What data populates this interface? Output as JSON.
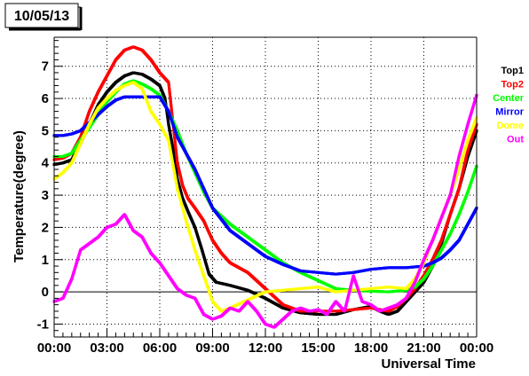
{
  "chart_data": {
    "type": "scatter",
    "title": "10/05/13",
    "xlabel": "Universal Time",
    "ylabel": "Temperature(degree)",
    "xlim": [
      0,
      24
    ],
    "ylim": [
      -1.4,
      7.9
    ],
    "grid": true,
    "legend_position": "right",
    "x_tick_values": [
      0,
      3,
      6,
      9,
      12,
      15,
      18,
      21,
      24
    ],
    "x_tick_labels": [
      "00:00",
      "03:00",
      "06:00",
      "09:00",
      "12:00",
      "15:00",
      "18:00",
      "21:00",
      "00:00"
    ],
    "y_tick_values": [
      -1,
      0,
      1,
      2,
      3,
      4,
      5,
      6,
      7
    ],
    "y_tick_labels": [
      "-1",
      "0",
      "1",
      "2",
      "3",
      "4",
      "5",
      "6",
      "7"
    ],
    "series": [
      {
        "name": "Top1",
        "color": "#000000",
        "points": [
          [
            0,
            3.95
          ],
          [
            0.5,
            4.0
          ],
          [
            1,
            4.1
          ],
          [
            1.5,
            4.6
          ],
          [
            2,
            5.2
          ],
          [
            2.5,
            5.8
          ],
          [
            3,
            6.2
          ],
          [
            3.5,
            6.5
          ],
          [
            4,
            6.7
          ],
          [
            4.5,
            6.8
          ],
          [
            5,
            6.75
          ],
          [
            5.5,
            6.6
          ],
          [
            6,
            6.4
          ],
          [
            6.3,
            6.0
          ],
          [
            6.5,
            5.2
          ],
          [
            6.8,
            4.3
          ],
          [
            7,
            3.5
          ],
          [
            7.3,
            2.9
          ],
          [
            7.6,
            2.5
          ],
          [
            8,
            2.0
          ],
          [
            8.4,
            1.3
          ],
          [
            8.8,
            0.55
          ],
          [
            9.2,
            0.3
          ],
          [
            10,
            0.2
          ],
          [
            11,
            0.05
          ],
          [
            12,
            -0.2
          ],
          [
            13,
            -0.5
          ],
          [
            14,
            -0.65
          ],
          [
            15,
            -0.7
          ],
          [
            16,
            -0.7
          ],
          [
            17,
            -0.55
          ],
          [
            18,
            -0.45
          ],
          [
            18.5,
            -0.6
          ],
          [
            19,
            -0.7
          ],
          [
            19.5,
            -0.6
          ],
          [
            20,
            -0.3
          ],
          [
            20.5,
            0.0
          ],
          [
            21,
            0.3
          ],
          [
            21.5,
            0.8
          ],
          [
            22,
            1.5
          ],
          [
            22.5,
            2.4
          ],
          [
            23,
            3.2
          ],
          [
            23.5,
            4.2
          ],
          [
            24,
            5.0
          ]
        ]
      },
      {
        "name": "Top2",
        "color": "#ff0000",
        "points": [
          [
            0,
            4.1
          ],
          [
            0.5,
            4.15
          ],
          [
            1,
            4.3
          ],
          [
            1.5,
            4.8
          ],
          [
            2,
            5.6
          ],
          [
            2.5,
            6.2
          ],
          [
            3,
            6.7
          ],
          [
            3.5,
            7.2
          ],
          [
            4,
            7.5
          ],
          [
            4.5,
            7.6
          ],
          [
            5,
            7.5
          ],
          [
            5.5,
            7.2
          ],
          [
            6,
            6.8
          ],
          [
            6.5,
            6.5
          ],
          [
            6.8,
            5.0
          ],
          [
            7,
            4.0
          ],
          [
            7.3,
            3.3
          ],
          [
            7.6,
            2.9
          ],
          [
            8,
            2.6
          ],
          [
            8.5,
            2.2
          ],
          [
            9,
            1.6
          ],
          [
            9.5,
            1.2
          ],
          [
            10,
            0.9
          ],
          [
            10.5,
            0.75
          ],
          [
            11,
            0.6
          ],
          [
            12,
            0.1
          ],
          [
            13,
            -0.4
          ],
          [
            14,
            -0.6
          ],
          [
            15,
            -0.6
          ],
          [
            16,
            -0.6
          ],
          [
            17,
            -0.55
          ],
          [
            18,
            -0.5
          ],
          [
            18.5,
            -0.55
          ],
          [
            19,
            -0.6
          ],
          [
            19.5,
            -0.45
          ],
          [
            20,
            -0.2
          ],
          [
            20.5,
            0.1
          ],
          [
            21,
            0.5
          ],
          [
            21.5,
            1.0
          ],
          [
            22,
            1.6
          ],
          [
            22.5,
            2.4
          ],
          [
            23,
            3.2
          ],
          [
            23.5,
            4.4
          ],
          [
            24,
            5.2
          ]
        ]
      },
      {
        "name": "Center",
        "color": "#00ff00",
        "points": [
          [
            0,
            4.2
          ],
          [
            0.5,
            4.2
          ],
          [
            1,
            4.3
          ],
          [
            1.5,
            4.7
          ],
          [
            2,
            5.1
          ],
          [
            2.5,
            5.5
          ],
          [
            3,
            5.9
          ],
          [
            3.5,
            6.2
          ],
          [
            4,
            6.45
          ],
          [
            4.5,
            6.55
          ],
          [
            5,
            6.45
          ],
          [
            5.5,
            6.3
          ],
          [
            6,
            6.1
          ],
          [
            6.5,
            5.6
          ],
          [
            7,
            5.0
          ],
          [
            7.5,
            4.3
          ],
          [
            8,
            3.7
          ],
          [
            8.5,
            3.1
          ],
          [
            9,
            2.6
          ],
          [
            10,
            2.1
          ],
          [
            11,
            1.7
          ],
          [
            12,
            1.3
          ],
          [
            13,
            0.9
          ],
          [
            14,
            0.6
          ],
          [
            15,
            0.35
          ],
          [
            16,
            0.1
          ],
          [
            17,
            0.05
          ],
          [
            18,
            0.02
          ],
          [
            19,
            0.0
          ],
          [
            20,
            0.05
          ],
          [
            20.5,
            0.15
          ],
          [
            21,
            0.4
          ],
          [
            21.5,
            0.8
          ],
          [
            22,
            1.3
          ],
          [
            22.5,
            1.8
          ],
          [
            23,
            2.4
          ],
          [
            23.5,
            3.1
          ],
          [
            24,
            3.9
          ]
        ]
      },
      {
        "name": "Mirror",
        "color": "#0000ff",
        "points": [
          [
            0,
            4.85
          ],
          [
            0.5,
            4.85
          ],
          [
            1,
            4.9
          ],
          [
            1.5,
            5.0
          ],
          [
            2,
            5.25
          ],
          [
            2.5,
            5.5
          ],
          [
            3,
            5.75
          ],
          [
            3.5,
            5.95
          ],
          [
            4,
            6.05
          ],
          [
            4.5,
            6.05
          ],
          [
            5,
            6.05
          ],
          [
            5.5,
            6.05
          ],
          [
            6,
            6.05
          ],
          [
            6.5,
            5.6
          ],
          [
            7,
            4.8
          ],
          [
            7.5,
            4.3
          ],
          [
            8,
            3.8
          ],
          [
            8.5,
            3.2
          ],
          [
            9,
            2.6
          ],
          [
            10,
            1.9
          ],
          [
            11,
            1.5
          ],
          [
            12,
            1.1
          ],
          [
            13,
            0.85
          ],
          [
            14,
            0.65
          ],
          [
            15,
            0.6
          ],
          [
            16,
            0.55
          ],
          [
            17,
            0.6
          ],
          [
            18,
            0.7
          ],
          [
            19,
            0.75
          ],
          [
            20,
            0.75
          ],
          [
            21,
            0.8
          ],
          [
            21.5,
            0.9
          ],
          [
            22,
            1.05
          ],
          [
            22.5,
            1.3
          ],
          [
            23,
            1.6
          ],
          [
            23.5,
            2.1
          ],
          [
            24,
            2.6
          ]
        ]
      },
      {
        "name": "Dome",
        "color": "#ffff00",
        "points": [
          [
            0,
            3.5
          ],
          [
            0.5,
            3.7
          ],
          [
            1,
            4.0
          ],
          [
            1.5,
            4.6
          ],
          [
            2,
            5.2
          ],
          [
            2.5,
            5.7
          ],
          [
            3,
            6.0
          ],
          [
            3.5,
            6.25
          ],
          [
            4,
            6.4
          ],
          [
            4.5,
            6.5
          ],
          [
            5,
            6.3
          ],
          [
            5.5,
            5.6
          ],
          [
            6,
            5.2
          ],
          [
            6.5,
            4.7
          ],
          [
            7,
            3.2
          ],
          [
            7.5,
            2.2
          ],
          [
            8,
            1.3
          ],
          [
            8.5,
            0.5
          ],
          [
            9,
            -0.3
          ],
          [
            9.5,
            -0.6
          ],
          [
            10,
            -0.5
          ],
          [
            11,
            -0.25
          ],
          [
            12,
            0.0
          ],
          [
            13,
            0.05
          ],
          [
            14,
            0.1
          ],
          [
            15,
            0.15
          ],
          [
            16,
            0.0
          ],
          [
            17,
            0.05
          ],
          [
            18,
            0.1
          ],
          [
            19,
            0.15
          ],
          [
            20,
            0.1
          ],
          [
            20.5,
            0.4
          ],
          [
            21,
            0.9
          ],
          [
            21.5,
            1.6
          ],
          [
            22,
            2.3
          ],
          [
            22.5,
            3.0
          ],
          [
            23,
            3.8
          ],
          [
            23.5,
            4.7
          ],
          [
            24,
            5.4
          ]
        ]
      },
      {
        "name": "Out",
        "color": "#ff00ff",
        "points": [
          [
            0,
            -0.3
          ],
          [
            0.5,
            -0.2
          ],
          [
            1,
            0.4
          ],
          [
            1.5,
            1.3
          ],
          [
            2,
            1.5
          ],
          [
            2.5,
            1.7
          ],
          [
            3,
            2.0
          ],
          [
            3.5,
            2.1
          ],
          [
            4,
            2.4
          ],
          [
            4.5,
            1.9
          ],
          [
            5,
            1.7
          ],
          [
            5.5,
            1.2
          ],
          [
            6,
            0.9
          ],
          [
            6.5,
            0.5
          ],
          [
            7,
            0.1
          ],
          [
            7.5,
            -0.1
          ],
          [
            8,
            -0.2
          ],
          [
            8.5,
            -0.7
          ],
          [
            9,
            -0.85
          ],
          [
            9.5,
            -0.75
          ],
          [
            10,
            -0.5
          ],
          [
            10.5,
            -0.6
          ],
          [
            11,
            -0.3
          ],
          [
            11.5,
            -0.6
          ],
          [
            12,
            -1.0
          ],
          [
            12.5,
            -1.1
          ],
          [
            13,
            -0.85
          ],
          [
            13.5,
            -0.6
          ],
          [
            14,
            -0.5
          ],
          [
            14.5,
            -0.6
          ],
          [
            15,
            -0.55
          ],
          [
            15.5,
            -0.7
          ],
          [
            16,
            -0.3
          ],
          [
            16.5,
            -0.6
          ],
          [
            17,
            0.5
          ],
          [
            17.5,
            -0.3
          ],
          [
            18,
            -0.4
          ],
          [
            18.5,
            -0.6
          ],
          [
            19,
            -0.5
          ],
          [
            19.5,
            -0.4
          ],
          [
            20,
            -0.2
          ],
          [
            20.5,
            0.3
          ],
          [
            21,
            1.0
          ],
          [
            21.5,
            1.6
          ],
          [
            22,
            2.3
          ],
          [
            22.5,
            3.0
          ],
          [
            23,
            4.2
          ],
          [
            23.5,
            5.2
          ],
          [
            24,
            6.1
          ]
        ]
      }
    ]
  }
}
